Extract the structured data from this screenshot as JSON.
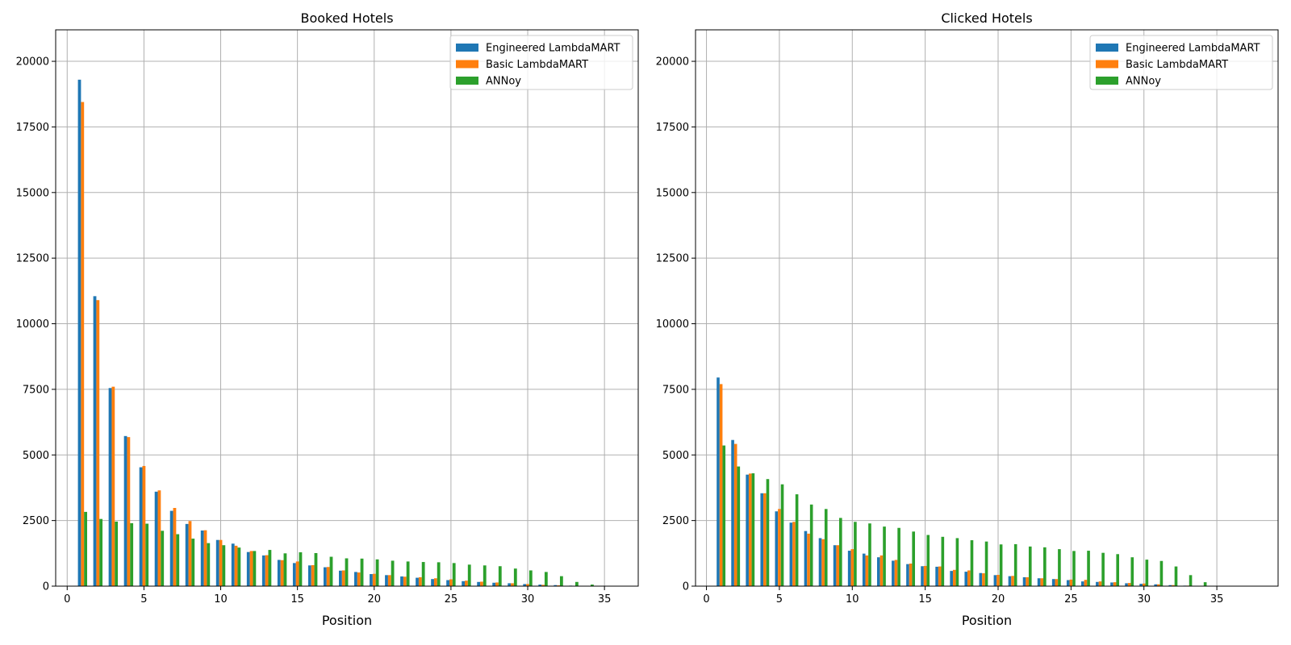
{
  "figure": {
    "panels": [
      {
        "title": "Booked Hotels",
        "xlabel": "Position"
      },
      {
        "title": "Clicked Hotels",
        "xlabel": "Position"
      }
    ],
    "legend": {
      "location": "top-right",
      "entries": [
        {
          "label": "Engineered LambdaMART",
          "color": "#1f77b4"
        },
        {
          "label": "Basic LambdaMART",
          "color": "#ff7f0e"
        },
        {
          "label": "ANNoy",
          "color": "#2ca02c"
        }
      ]
    }
  },
  "chart_data": [
    {
      "type": "bar",
      "title": "Booked Hotels",
      "xlabel": "Position",
      "ylabel": "",
      "grid": true,
      "xlim": [
        -0.75,
        37.2
      ],
      "ylim": [
        0,
        21200
      ],
      "xticks": [
        0,
        5,
        10,
        15,
        20,
        25,
        30,
        35
      ],
      "yticks": [
        0,
        2500,
        5000,
        7500,
        10000,
        12500,
        15000,
        17500,
        20000
      ],
      "legend_position": "top-right",
      "x": [
        1,
        2,
        3,
        4,
        5,
        6,
        7,
        8,
        9,
        10,
        11,
        12,
        13,
        14,
        15,
        16,
        17,
        18,
        19,
        20,
        21,
        22,
        23,
        24,
        25,
        26,
        27,
        28,
        29,
        30,
        31,
        32,
        33,
        34,
        35
      ],
      "series": [
        {
          "name": "Engineered LambdaMART",
          "color": "#1f77b4",
          "values": [
            19300,
            11050,
            7550,
            5720,
            4530,
            3600,
            2870,
            2370,
            2120,
            1760,
            1620,
            1300,
            1170,
            1000,
            880,
            790,
            720,
            590,
            540,
            460,
            420,
            370,
            320,
            270,
            230,
            190,
            160,
            130,
            110,
            80,
            60,
            40,
            20,
            10,
            5
          ]
        },
        {
          "name": "Basic LambdaMART",
          "color": "#ff7f0e",
          "values": [
            18450,
            10900,
            7600,
            5680,
            4580,
            3650,
            2980,
            2480,
            2130,
            1760,
            1540,
            1340,
            1180,
            990,
            940,
            800,
            730,
            600,
            520,
            470,
            420,
            360,
            340,
            300,
            260,
            210,
            170,
            140,
            110,
            80,
            50,
            30,
            15,
            5,
            0
          ]
        },
        {
          "name": "ANNoy",
          "color": "#2ca02c",
          "values": [
            2830,
            2560,
            2460,
            2400,
            2380,
            2110,
            1980,
            1810,
            1640,
            1560,
            1470,
            1340,
            1380,
            1250,
            1290,
            1260,
            1120,
            1060,
            1050,
            1020,
            970,
            940,
            920,
            910,
            880,
            820,
            790,
            760,
            670,
            600,
            540,
            380,
            160,
            60,
            0
          ]
        }
      ]
    },
    {
      "type": "bar",
      "title": "Clicked Hotels",
      "xlabel": "Position",
      "ylabel": "",
      "grid": true,
      "xlim": [
        -0.75,
        39.2
      ],
      "ylim": [
        0,
        21200
      ],
      "xticks": [
        0,
        5,
        10,
        15,
        20,
        25,
        30,
        35
      ],
      "yticks": [
        0,
        2500,
        5000,
        7500,
        10000,
        12500,
        15000,
        17500,
        20000
      ],
      "legend_position": "top-right",
      "x": [
        1,
        2,
        3,
        4,
        5,
        6,
        7,
        8,
        9,
        10,
        11,
        12,
        13,
        14,
        15,
        16,
        17,
        18,
        19,
        20,
        21,
        22,
        23,
        24,
        25,
        26,
        27,
        28,
        29,
        30,
        31,
        32,
        33,
        34,
        35,
        36,
        37
      ],
      "series": [
        {
          "name": "Engineered LambdaMART",
          "color": "#1f77b4",
          "values": [
            7950,
            5570,
            4250,
            3540,
            2850,
            2420,
            2100,
            1830,
            1560,
            1350,
            1240,
            1100,
            970,
            840,
            760,
            740,
            580,
            550,
            500,
            420,
            380,
            340,
            300,
            270,
            230,
            180,
            160,
            140,
            110,
            90,
            70,
            40,
            20,
            10,
            5,
            5,
            5
          ]
        },
        {
          "name": "Basic LambdaMART",
          "color": "#ff7f0e",
          "values": [
            7700,
            5420,
            4290,
            3540,
            2940,
            2450,
            2000,
            1790,
            1560,
            1410,
            1170,
            1170,
            1000,
            860,
            770,
            750,
            620,
            600,
            490,
            430,
            390,
            340,
            300,
            270,
            250,
            240,
            180,
            150,
            120,
            100,
            70,
            40,
            20,
            10,
            5,
            5,
            5
          ]
        },
        {
          "name": "ANNoy",
          "color": "#2ca02c",
          "values": [
            5360,
            4560,
            4300,
            4080,
            3880,
            3500,
            3110,
            2940,
            2600,
            2450,
            2390,
            2270,
            2220,
            2080,
            1950,
            1880,
            1830,
            1750,
            1700,
            1590,
            1600,
            1510,
            1480,
            1410,
            1340,
            1350,
            1270,
            1220,
            1100,
            1010,
            960,
            750,
            420,
            150,
            10,
            5,
            5
          ]
        }
      ]
    }
  ]
}
